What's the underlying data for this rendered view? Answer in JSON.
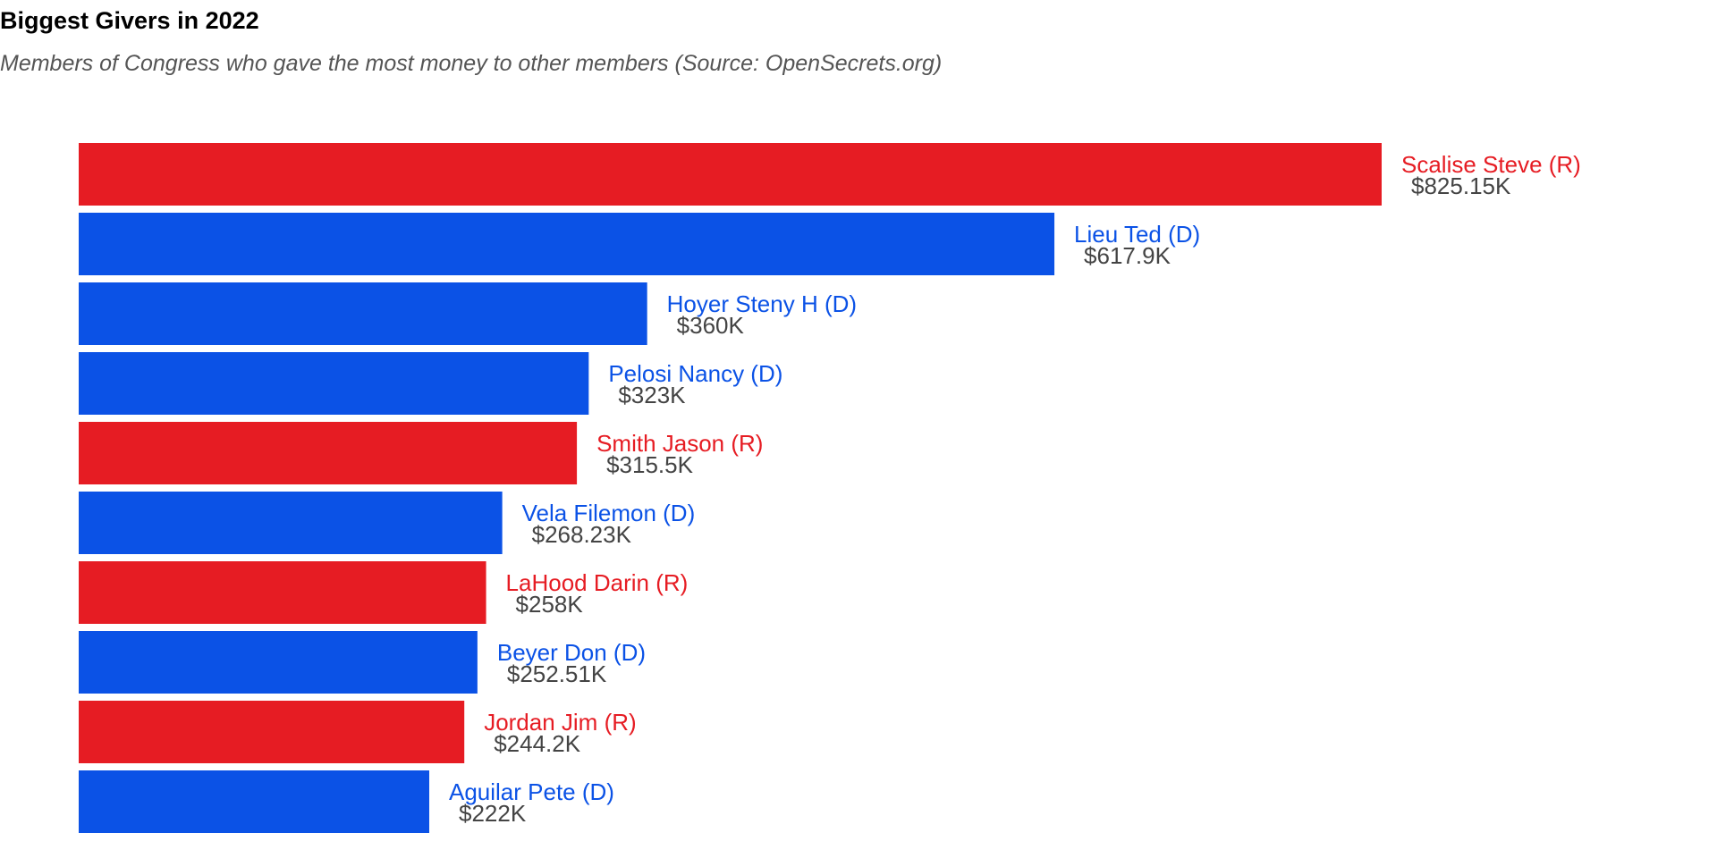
{
  "chart_data": {
    "type": "bar",
    "orientation": "horizontal",
    "title": "Biggest Givers in 2022",
    "subtitle": "Members of Congress who gave the most money to other members (Source: OpenSecrets.org)",
    "xlabel": "",
    "ylabel": "",
    "grid": false,
    "legend": "none",
    "xlim": [
      0,
      825150
    ],
    "colors": {
      "R": "#e61c23",
      "D": "#0b52e6"
    },
    "bars": [
      {
        "name": "Scalise Steve (R)",
        "party": "R",
        "value": 825150,
        "value_label": "$825.15K"
      },
      {
        "name": "Lieu Ted (D)",
        "party": "D",
        "value": 617900,
        "value_label": "$617.9K"
      },
      {
        "name": "Hoyer Steny H (D)",
        "party": "D",
        "value": 360000,
        "value_label": "$360K"
      },
      {
        "name": "Pelosi Nancy (D)",
        "party": "D",
        "value": 323000,
        "value_label": "$323K"
      },
      {
        "name": "Smith Jason (R)",
        "party": "R",
        "value": 315500,
        "value_label": "$315.5K"
      },
      {
        "name": "Vela Filemon (D)",
        "party": "D",
        "value": 268230,
        "value_label": "$268.23K"
      },
      {
        "name": "LaHood Darin (R)",
        "party": "R",
        "value": 258000,
        "value_label": "$258K"
      },
      {
        "name": "Beyer Don (D)",
        "party": "D",
        "value": 252510,
        "value_label": "$252.51K"
      },
      {
        "name": "Jordan Jim (R)",
        "party": "R",
        "value": 244200,
        "value_label": "$244.2K"
      },
      {
        "name": "Aguilar Pete (D)",
        "party": "D",
        "value": 222000,
        "value_label": "$222K"
      }
    ]
  }
}
